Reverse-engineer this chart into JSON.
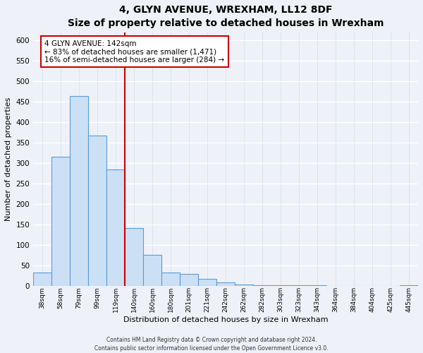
{
  "title": "4, GLYN AVENUE, WREXHAM, LL12 8DF",
  "subtitle": "Size of property relative to detached houses in Wrexham",
  "xlabel": "Distribution of detached houses by size in Wrexham",
  "ylabel": "Number of detached properties",
  "bar_labels": [
    "38sqm",
    "58sqm",
    "79sqm",
    "99sqm",
    "119sqm",
    "140sqm",
    "160sqm",
    "180sqm",
    "201sqm",
    "221sqm",
    "242sqm",
    "262sqm",
    "282sqm",
    "303sqm",
    "323sqm",
    "343sqm",
    "364sqm",
    "384sqm",
    "404sqm",
    "425sqm",
    "445sqm"
  ],
  "bar_values": [
    32,
    315,
    465,
    367,
    285,
    142,
    75,
    32,
    29,
    17,
    8,
    3,
    2,
    1,
    1,
    1,
    0,
    0,
    0,
    0,
    2
  ],
  "bar_color": "#cce0f5",
  "bar_edge_color": "#5b9bd5",
  "ref_line_index": 5,
  "annotation_text_line1": "4 GLYN AVENUE: 142sqm",
  "annotation_text_line2": "← 83% of detached houses are smaller (1,471)",
  "annotation_text_line3": "16% of semi-detached houses are larger (284) →",
  "annotation_box_color": "#ffffff",
  "annotation_box_edge": "#cc0000",
  "ref_line_color": "#cc0000",
  "ylim": [
    0,
    620
  ],
  "yticks": [
    0,
    50,
    100,
    150,
    200,
    250,
    300,
    350,
    400,
    450,
    500,
    550,
    600
  ],
  "footer_line1": "Contains HM Land Registry data © Crown copyright and database right 2024.",
  "footer_line2": "Contains public sector information licensed under the Open Government Licence v3.0.",
  "background_color": "#eef2f8",
  "grid_color": "#d8e4f0",
  "title_fontsize": 10,
  "subtitle_fontsize": 9
}
